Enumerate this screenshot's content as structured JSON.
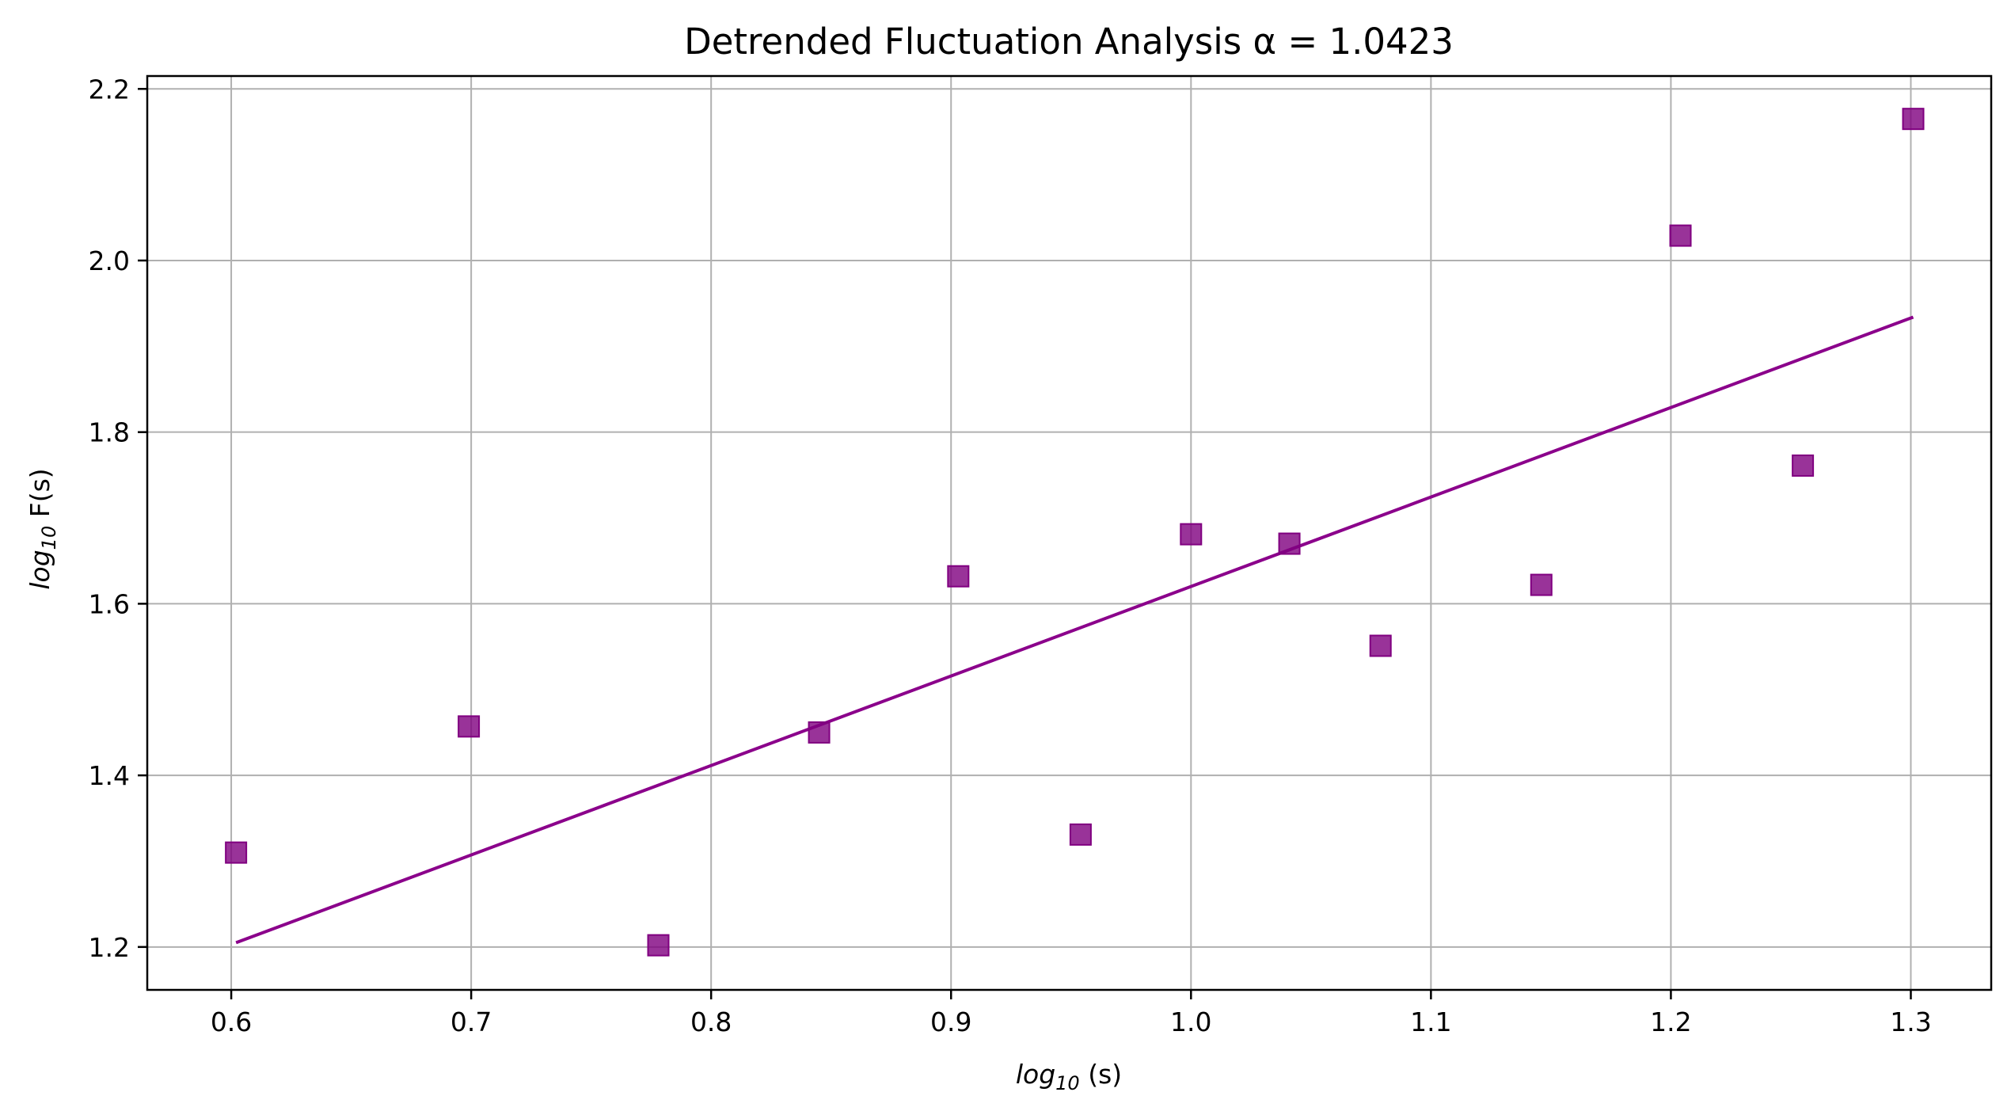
{
  "chart_data": {
    "type": "scatter",
    "title": "Detrended Fluctuation Analysis α = 1.0423",
    "xlabel": "log10 (s)",
    "ylabel": "log10 F(s)",
    "xlim": [
      0.565,
      1.3335
    ],
    "ylim": [
      1.15,
      2.215
    ],
    "xticks": [
      0.6,
      0.7,
      0.8,
      0.9,
      1.0,
      1.1,
      1.2,
      1.3
    ],
    "xtick_labels": [
      "0.6",
      "0.7",
      "0.8",
      "0.9",
      "1.0",
      "1.1",
      "1.2",
      "1.3"
    ],
    "yticks": [
      1.2,
      1.4,
      1.6,
      1.8,
      2.0,
      2.2
    ],
    "ytick_labels": [
      "1.2",
      "1.4",
      "1.6",
      "1.8",
      "2.0",
      "2.2"
    ],
    "grid": true,
    "series": [
      {
        "kind": "scatter",
        "marker": "square",
        "color": "#800080",
        "x": [
          0.602,
          0.699,
          0.778,
          0.845,
          0.903,
          0.954,
          1.0,
          1.041,
          1.079,
          1.146,
          1.204,
          1.255,
          1.301
        ],
        "y": [
          1.31,
          1.457,
          1.202,
          1.45,
          1.632,
          1.331,
          1.681,
          1.67,
          1.551,
          1.622,
          2.029,
          1.761,
          2.165
        ]
      },
      {
        "kind": "line",
        "color": "#8b008b",
        "x": [
          0.602,
          1.301
        ],
        "y": [
          1.205,
          1.934
        ]
      }
    ]
  }
}
